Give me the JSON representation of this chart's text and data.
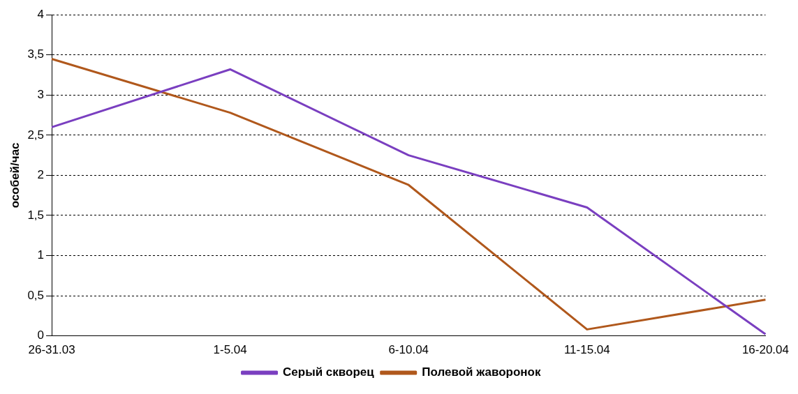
{
  "chart_data": {
    "type": "line",
    "ylabel": "особей/час",
    "categories": [
      "26-31.03",
      "1-5.04",
      "6-10.04",
      "11-15.04",
      "16-20.04"
    ],
    "series": [
      {
        "name": "Серый скворец",
        "color": "#7a3fc0",
        "values": [
          2.6,
          3.32,
          2.25,
          1.6,
          0.02
        ]
      },
      {
        "name": "Полевой жаворонок",
        "color": "#b0581c",
        "values": [
          3.45,
          2.78,
          1.88,
          0.08,
          0.45
        ]
      }
    ],
    "ylim": [
      0,
      4
    ],
    "yticks": [
      0,
      {
        "value": 0.5,
        "label": "0,5"
      },
      1,
      {
        "value": 1.5,
        "label": "1,5"
      },
      2,
      {
        "value": 2.5,
        "label": "2,5"
      },
      3,
      {
        "value": 3.5,
        "label": "3,5"
      },
      4
    ],
    "grid": "y",
    "legend": "bottom",
    "marker": "none",
    "line_style": "solid"
  }
}
